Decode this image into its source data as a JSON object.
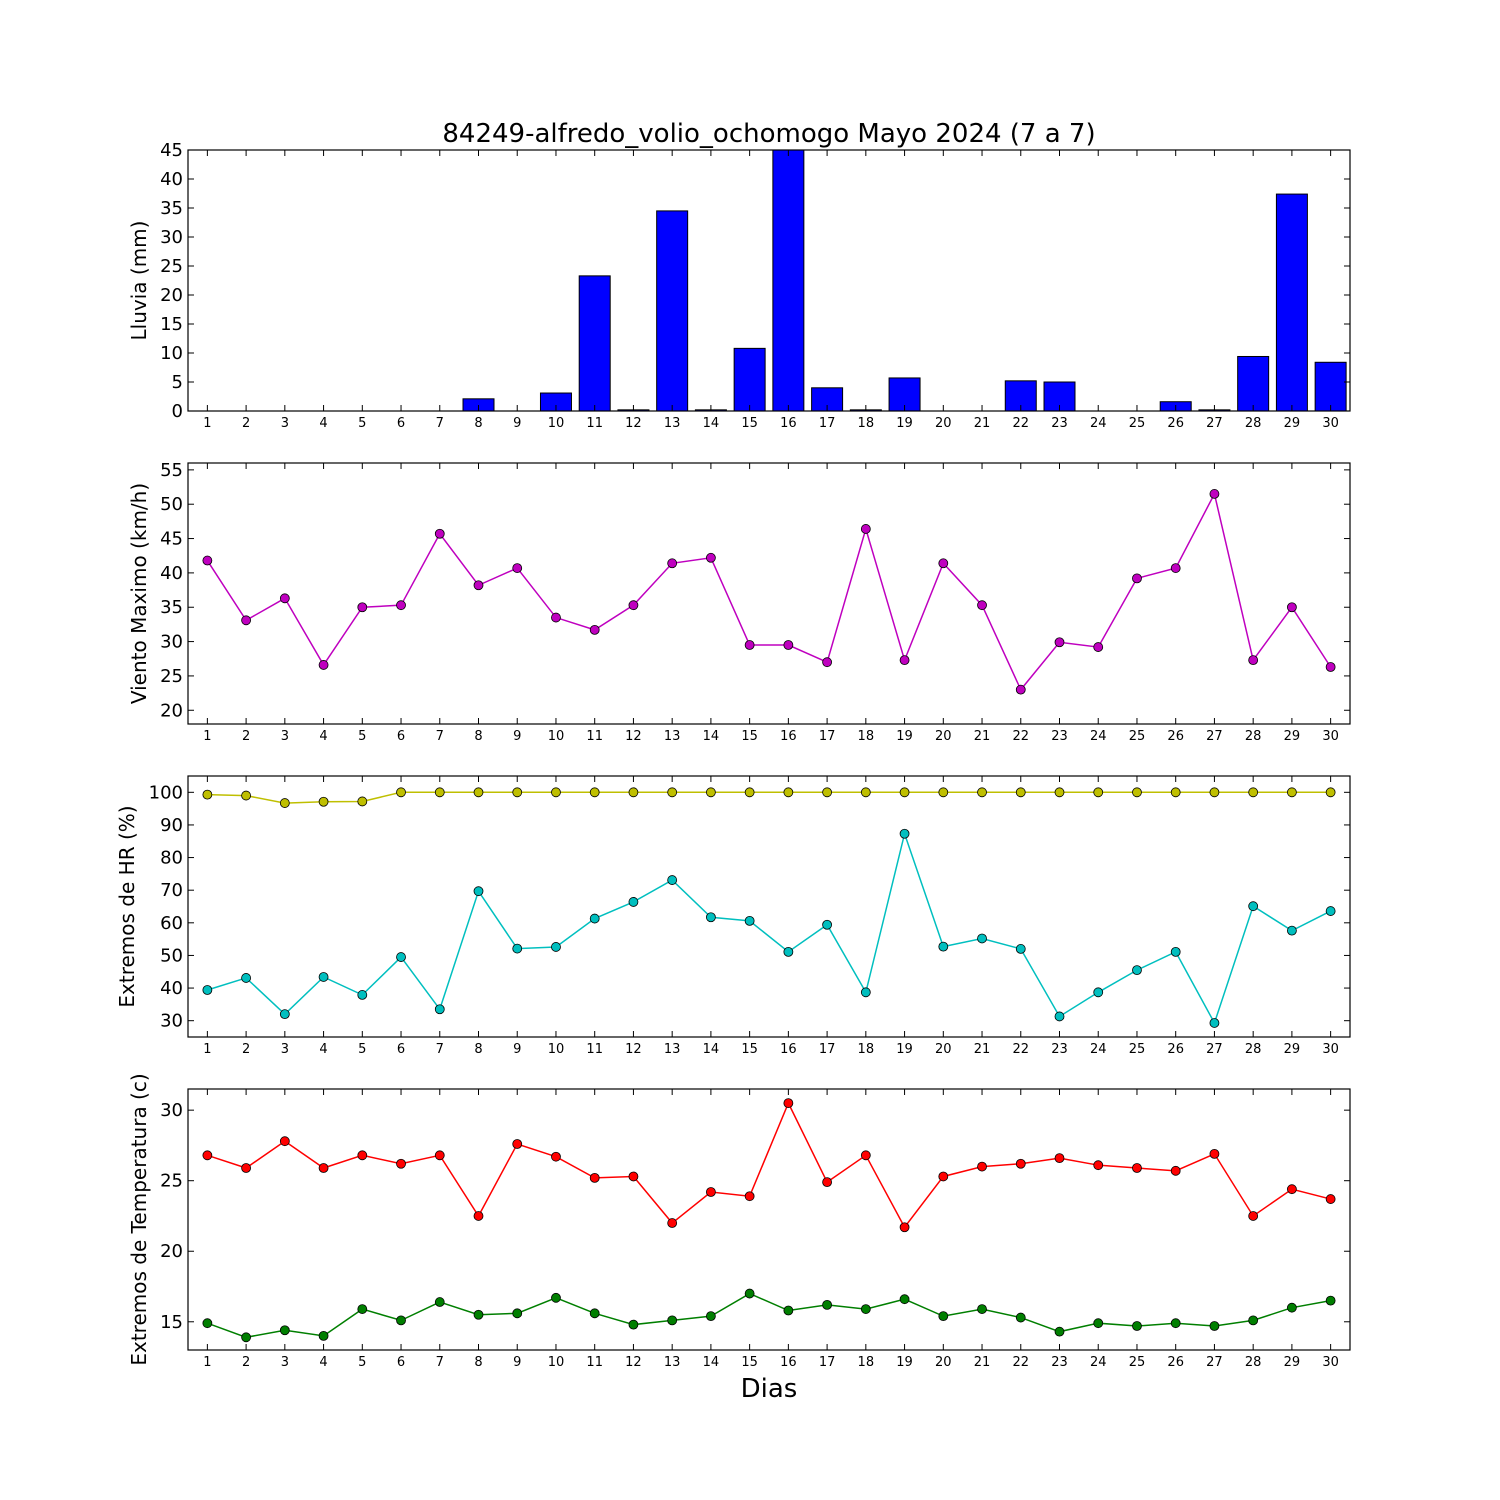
{
  "title": "84249-alfredo_volio_ochomogo Mayo 2024  (7 a 7)",
  "xlabel": "Dias",
  "chart_data": [
    {
      "type": "bar",
      "ylabel": "Lluvia (mm)",
      "ylim": [
        0,
        45
      ],
      "yticks": [
        0,
        5,
        10,
        15,
        20,
        25,
        30,
        35,
        40,
        45
      ],
      "categories": [
        "1",
        "2",
        "3",
        "4",
        "5",
        "6",
        "7",
        "8",
        "9",
        "10",
        "11",
        "12",
        "13",
        "14",
        "15",
        "16",
        "17",
        "18",
        "19",
        "20",
        "21",
        "22",
        "23",
        "24",
        "25",
        "26",
        "27",
        "28",
        "29",
        "30"
      ],
      "series": [
        {
          "color": "#0000ff",
          "values": [
            0,
            0,
            0,
            0,
            0,
            0,
            0,
            2.1,
            0,
            3.1,
            23.3,
            0.2,
            34.5,
            0.2,
            10.8,
            45.0,
            4.0,
            0.2,
            5.7,
            0,
            0,
            5.2,
            5.0,
            0,
            0,
            1.6,
            0.2,
            9.4,
            37.4,
            8.4
          ]
        }
      ]
    },
    {
      "type": "line",
      "ylabel": "Viento Maximo (km/h)",
      "ylim": [
        18,
        56
      ],
      "yticks": [
        20,
        25,
        30,
        35,
        40,
        45,
        50,
        55
      ],
      "categories": [
        "1",
        "2",
        "3",
        "4",
        "5",
        "6",
        "7",
        "8",
        "9",
        "10",
        "11",
        "12",
        "13",
        "14",
        "15",
        "16",
        "17",
        "18",
        "19",
        "20",
        "21",
        "22",
        "23",
        "24",
        "25",
        "26",
        "27",
        "28",
        "29",
        "30"
      ],
      "series": [
        {
          "color": "#bf00bf",
          "values": [
            41.8,
            33.1,
            36.3,
            26.6,
            35.0,
            35.3,
            45.7,
            38.2,
            40.7,
            33.5,
            31.7,
            35.3,
            41.4,
            42.2,
            29.5,
            29.5,
            27.0,
            46.4,
            27.3,
            41.4,
            35.3,
            23.0,
            29.9,
            29.2,
            39.2,
            40.7,
            51.5,
            27.3,
            35.0,
            26.3
          ]
        }
      ]
    },
    {
      "type": "line",
      "ylabel": "Extremos de HR (%)",
      "ylim": [
        25,
        105
      ],
      "yticks": [
        30,
        40,
        50,
        60,
        70,
        80,
        90,
        100
      ],
      "categories": [
        "1",
        "2",
        "3",
        "4",
        "5",
        "6",
        "7",
        "8",
        "9",
        "10",
        "11",
        "12",
        "13",
        "14",
        "15",
        "16",
        "17",
        "18",
        "19",
        "20",
        "21",
        "22",
        "23",
        "24",
        "25",
        "26",
        "27",
        "28",
        "29",
        "30"
      ],
      "series": [
        {
          "color": "#bfbf00",
          "values": [
            99.3,
            99.0,
            96.7,
            97.1,
            97.2,
            100,
            100,
            100,
            100,
            100,
            100,
            100,
            100,
            100,
            100,
            100,
            100,
            100,
            100,
            100,
            100,
            100,
            100,
            100,
            100,
            100,
            100,
            100,
            100,
            100
          ]
        },
        {
          "color": "#00bfbf",
          "values": [
            39.4,
            43.1,
            32.0,
            43.4,
            37.9,
            49.5,
            33.5,
            69.7,
            52.1,
            52.6,
            61.3,
            66.4,
            73.1,
            61.7,
            60.6,
            51.1,
            59.4,
            38.7,
            87.3,
            52.7,
            55.2,
            52.0,
            31.3,
            38.7,
            45.5,
            51.1,
            29.3,
            65.1,
            57.6,
            63.6
          ]
        }
      ]
    },
    {
      "type": "line",
      "ylabel": "Extremos de Temperatura (c)",
      "ylim": [
        13,
        31.5
      ],
      "yticks": [
        15,
        20,
        25,
        30
      ],
      "categories": [
        "1",
        "2",
        "3",
        "4",
        "5",
        "6",
        "7",
        "8",
        "9",
        "10",
        "11",
        "12",
        "13",
        "14",
        "15",
        "16",
        "17",
        "18",
        "19",
        "20",
        "21",
        "22",
        "23",
        "24",
        "25",
        "26",
        "27",
        "28",
        "29",
        "30"
      ],
      "series": [
        {
          "color": "#ff0000",
          "values": [
            26.8,
            25.9,
            27.8,
            25.9,
            26.8,
            26.2,
            26.8,
            22.5,
            27.6,
            26.7,
            25.2,
            25.3,
            22.0,
            24.2,
            23.9,
            30.5,
            24.9,
            26.8,
            21.7,
            25.3,
            26.0,
            26.2,
            26.6,
            26.1,
            25.9,
            25.7,
            26.9,
            22.5,
            24.4,
            23.7
          ]
        },
        {
          "color": "#007f00",
          "values": [
            14.9,
            13.9,
            14.4,
            14.0,
            15.9,
            15.1,
            16.4,
            15.5,
            15.6,
            16.7,
            15.6,
            14.8,
            15.1,
            15.4,
            17.0,
            15.8,
            16.2,
            15.9,
            16.6,
            15.4,
            15.9,
            15.3,
            14.3,
            14.9,
            14.7,
            14.9,
            14.7,
            15.1,
            16.0,
            16.5
          ]
        }
      ]
    }
  ]
}
